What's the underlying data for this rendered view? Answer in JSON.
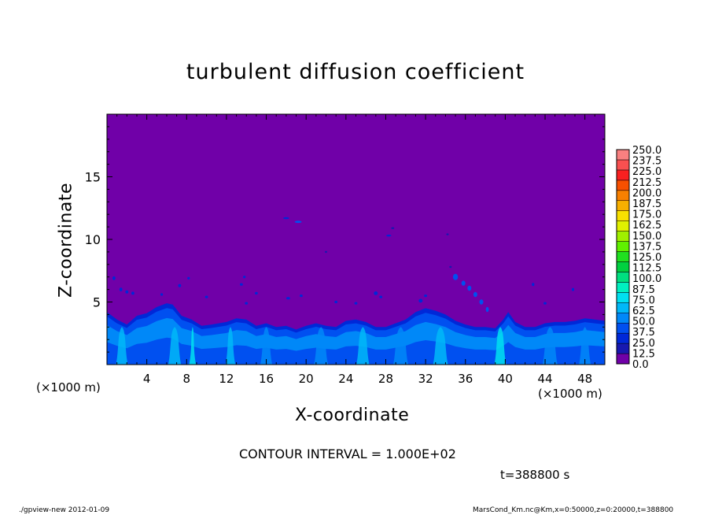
{
  "footer": {
    "program": "./gpview-new   2012-01-09",
    "file_info": "MarsCond_Km.nc@Km,x=0:50000,z=0:20000,t=388800"
  },
  "chart_data": {
    "type": "heatmap",
    "title": "turbulent diffusion coefficient",
    "xlabel": "X-coordinate",
    "ylabel": "Z-coordinate",
    "x_unit_label": "(×1000 m)",
    "x_ticks": [
      4,
      8,
      12,
      16,
      20,
      24,
      28,
      32,
      36,
      40,
      44,
      48
    ],
    "y_ticks": [
      5,
      10,
      15
    ],
    "xlim": [
      0,
      50
    ],
    "ylim": [
      0,
      20
    ],
    "contour_interval_text": "CONTOUR INTERVAL = 1.000E+02",
    "time_text": "t=388800 s",
    "colorbar": {
      "levels": [
        "0.0",
        "12.5",
        "25.0",
        "37.5",
        "50.0",
        "62.5",
        "75.0",
        "87.5",
        "100.0",
        "112.5",
        "125.0",
        "137.5",
        "150.0",
        "162.5",
        "175.0",
        "187.5",
        "200.0",
        "212.5",
        "225.0",
        "237.5",
        "250.0"
      ],
      "colors": [
        "#7000a8",
        "#1818b0",
        "#0028d8",
        "#0050f0",
        "#0088f8",
        "#00b8f8",
        "#00e0f0",
        "#00f0c0",
        "#00e080",
        "#00d040",
        "#20e020",
        "#60f000",
        "#a0f000",
        "#e0f000",
        "#f8e000",
        "#f8b000",
        "#f88000",
        "#f85000",
        "#f82020",
        "#f85050",
        "#f88080"
      ]
    },
    "background_value": 0.0,
    "boundary_layer_top": [
      [
        0,
        4.2
      ],
      [
        1,
        3.6
      ],
      [
        2,
        3.2
      ],
      [
        3,
        3.9
      ],
      [
        4,
        4.1
      ],
      [
        5,
        4.6
      ],
      [
        6,
        4.9
      ],
      [
        6.6,
        4.8
      ],
      [
        7.5,
        3.9
      ],
      [
        8.5,
        3.6
      ],
      [
        9.5,
        3.1
      ],
      [
        10.5,
        3.2
      ],
      [
        12,
        3.4
      ],
      [
        13,
        3.7
      ],
      [
        14,
        3.6
      ],
      [
        15,
        3.1
      ],
      [
        16,
        3.3
      ],
      [
        17,
        3.0
      ],
      [
        18,
        3.1
      ],
      [
        19,
        2.8
      ],
      [
        20,
        3.1
      ],
      [
        21,
        3.3
      ],
      [
        22,
        3.1
      ],
      [
        23,
        3.0
      ],
      [
        24,
        3.5
      ],
      [
        25,
        3.6
      ],
      [
        26,
        3.4
      ],
      [
        27,
        3.0
      ],
      [
        28,
        3.0
      ],
      [
        29,
        3.3
      ],
      [
        30,
        3.6
      ],
      [
        31,
        4.2
      ],
      [
        32,
        4.5
      ],
      [
        33,
        4.3
      ],
      [
        34,
        4.0
      ],
      [
        35,
        3.5
      ],
      [
        36,
        3.2
      ],
      [
        37,
        3.0
      ],
      [
        38,
        3.0
      ],
      [
        39,
        2.9
      ],
      [
        39.8,
        3.6
      ],
      [
        40.3,
        4.2
      ],
      [
        41,
        3.4
      ],
      [
        42,
        3.0
      ],
      [
        43,
        3.0
      ],
      [
        44,
        3.3
      ],
      [
        45,
        3.4
      ],
      [
        46,
        3.4
      ],
      [
        47,
        3.5
      ],
      [
        48,
        3.7
      ],
      [
        49,
        3.6
      ],
      [
        50,
        3.5
      ]
    ],
    "plumes": [
      {
        "x": 1.5,
        "width": 1.2,
        "value": 70
      },
      {
        "x": 6.8,
        "width": 1.3,
        "value": 70
      },
      {
        "x": 8.6,
        "width": 0.7,
        "value": 75
      },
      {
        "x": 12.4,
        "width": 1.0,
        "value": 65
      },
      {
        "x": 16.0,
        "width": 1.2,
        "value": 60
      },
      {
        "x": 21.5,
        "width": 1.4,
        "value": 60
      },
      {
        "x": 25.7,
        "width": 1.3,
        "value": 65
      },
      {
        "x": 29.5,
        "width": 1.5,
        "value": 60
      },
      {
        "x": 33.5,
        "width": 1.5,
        "value": 65
      },
      {
        "x": 39.5,
        "width": 1.2,
        "value": 80
      },
      {
        "x": 44.5,
        "width": 1.5,
        "value": 55
      },
      {
        "x": 48.0,
        "width": 1.2,
        "value": 55
      }
    ],
    "patches": [
      [
        18,
        11.7,
        0.6,
        0.15,
        30
      ],
      [
        19.2,
        11.4,
        0.7,
        0.18,
        40
      ],
      [
        28.3,
        10.3,
        0.5,
        0.15,
        30
      ],
      [
        28.7,
        10.9,
        0.3,
        0.1,
        20
      ],
      [
        35.0,
        7.0,
        0.5,
        0.5,
        40
      ],
      [
        35.8,
        6.5,
        0.4,
        0.4,
        40
      ],
      [
        36.4,
        6.1,
        0.4,
        0.4,
        40
      ],
      [
        37.0,
        5.6,
        0.4,
        0.4,
        40
      ],
      [
        37.6,
        5.0,
        0.4,
        0.4,
        40
      ],
      [
        38.2,
        4.4,
        0.3,
        0.4,
        40
      ],
      [
        0.7,
        6.9,
        0.3,
        0.3,
        30
      ],
      [
        1.4,
        6.0,
        0.3,
        0.3,
        30
      ],
      [
        2.0,
        5.8,
        0.3,
        0.25,
        30
      ],
      [
        2.6,
        5.7,
        0.3,
        0.25,
        30
      ],
      [
        7.3,
        6.3,
        0.3,
        0.25,
        30
      ],
      [
        8.2,
        6.9,
        0.25,
        0.2,
        25
      ],
      [
        13.5,
        6.4,
        0.3,
        0.2,
        30
      ],
      [
        13.8,
        7.0,
        0.25,
        0.2,
        25
      ],
      [
        14.0,
        4.9,
        0.3,
        0.2,
        30
      ],
      [
        15.0,
        5.7,
        0.3,
        0.2,
        25
      ],
      [
        18.2,
        5.3,
        0.4,
        0.2,
        30
      ],
      [
        19.5,
        5.5,
        0.3,
        0.2,
        25
      ],
      [
        27.0,
        5.7,
        0.4,
        0.3,
        30
      ],
      [
        27.5,
        5.4,
        0.3,
        0.2,
        25
      ],
      [
        31.5,
        5.1,
        0.4,
        0.3,
        30
      ],
      [
        32.0,
        5.5,
        0.3,
        0.2,
        25
      ],
      [
        42.8,
        6.4,
        0.25,
        0.25,
        30
      ],
      [
        46.8,
        6.0,
        0.25,
        0.25,
        30
      ],
      [
        23.0,
        5.0,
        0.3,
        0.2,
        25
      ],
      [
        25.0,
        4.9,
        0.3,
        0.2,
        25
      ],
      [
        10.0,
        5.4,
        0.3,
        0.2,
        25
      ],
      [
        44.0,
        4.9,
        0.3,
        0.2,
        25
      ],
      [
        5.5,
        5.6,
        0.25,
        0.2,
        25
      ],
      [
        22.0,
        9.0,
        0.15,
        0.1,
        15
      ],
      [
        34.2,
        10.4,
        0.15,
        0.1,
        15
      ],
      [
        34.5,
        7.8,
        0.2,
        0.15,
        20
      ]
    ]
  }
}
